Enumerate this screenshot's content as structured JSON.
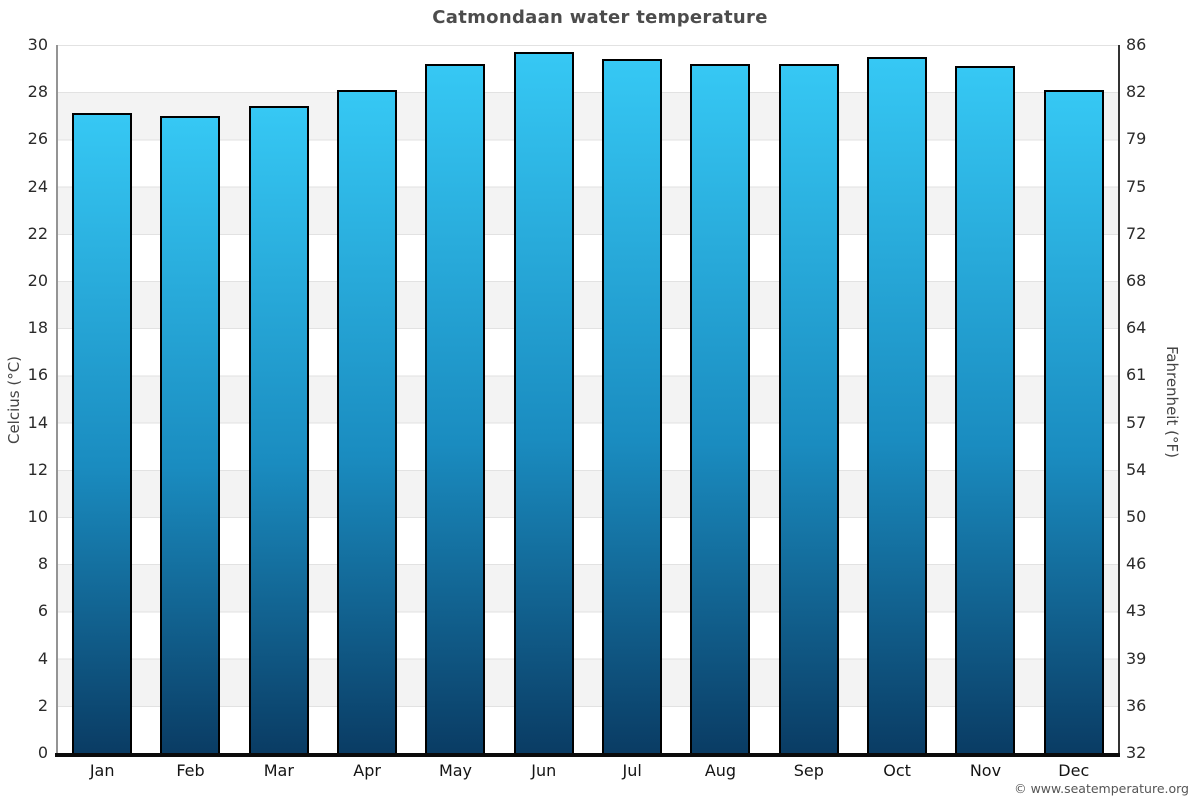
{
  "title": "Catmondaan water temperature",
  "footer": "© www.seatemperature.org",
  "axes": {
    "celsius": {
      "label": "Celcius (°C)",
      "ticks": [
        30,
        28,
        26,
        24,
        22,
        20,
        18,
        16,
        14,
        12,
        10,
        8,
        6,
        4,
        2,
        0
      ]
    },
    "fahrenheit": {
      "label": "Fahrenheit (°F)",
      "ticks": [
        86,
        82,
        79,
        75,
        72,
        68,
        64,
        61,
        57,
        54,
        50,
        46,
        43,
        39,
        36,
        32
      ]
    }
  },
  "colors": {
    "bar_gradient_top": "#36c8f4",
    "bar_gradient_bottom": "#0a3c64",
    "bar_border": "#000000",
    "band_fill": "#f3f3f3",
    "gridline": "#e2e2e2",
    "title_text": "#4c4c4c",
    "axis_bottom_line": "#0b0b0b"
  },
  "chart_data": {
    "type": "bar",
    "title": "Catmondaan water temperature",
    "categories": [
      "Jan",
      "Feb",
      "Mar",
      "Apr",
      "May",
      "Jun",
      "Jul",
      "Aug",
      "Sep",
      "Oct",
      "Nov",
      "Dec"
    ],
    "values": [
      27.1,
      27.0,
      27.4,
      28.1,
      29.2,
      29.7,
      29.4,
      29.2,
      29.2,
      29.5,
      29.1,
      28.1
    ],
    "unit": "°C",
    "xlabel": "",
    "ylabel_left": "Celcius (°C)",
    "ylabel_right": "Fahrenheit (°F)",
    "ylim": [
      0,
      30
    ],
    "y_tick_step": 2,
    "grid": "horizontal gridlines every 2°C with alternating white/gray bands",
    "legend": "none"
  }
}
